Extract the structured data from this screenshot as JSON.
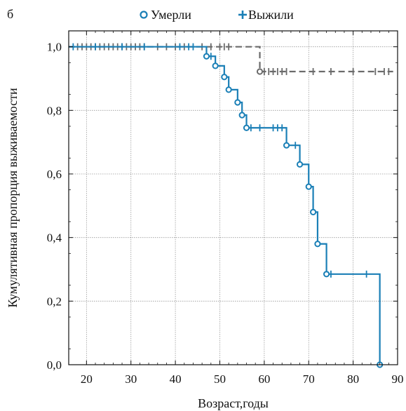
{
  "panel_label": "б",
  "colors": {
    "died_series": "#1a7fb6",
    "survived_series": "#6b6b6b",
    "grid": "#9a9a9a",
    "frame": "#111111"
  },
  "chart_data": {
    "type": "line",
    "subtype": "kaplan-meier step survival curves",
    "title": "",
    "xlabel": "Возраст,годы",
    "ylabel": "Кумулятивная пропорция выживаемости",
    "xlim": [
      16,
      90
    ],
    "ylim": [
      0,
      1.05
    ],
    "x_ticks": [
      20,
      30,
      40,
      50,
      60,
      70,
      80,
      90
    ],
    "y_ticks": [
      0,
      0.2,
      0.4,
      0.6,
      0.8,
      1.0
    ],
    "y_tick_labels": [
      "0,0",
      "0,2",
      "0,4",
      "0,6",
      "0,8",
      "1,0"
    ],
    "grid": true,
    "legend": {
      "placement": "top",
      "entries": [
        {
          "marker": "circle",
          "label": "Умерли"
        },
        {
          "marker": "plus",
          "label": "Выжили"
        }
      ]
    },
    "series": [
      {
        "style": "solid",
        "color": "#1a7fb6",
        "steps": [
          [
            16,
            1.0
          ],
          [
            47,
            0.97
          ],
          [
            49,
            0.94
          ],
          [
            51,
            0.905
          ],
          [
            52,
            0.865
          ],
          [
            54,
            0.825
          ],
          [
            55,
            0.785
          ],
          [
            56,
            0.745
          ],
          [
            65,
            0.69
          ],
          [
            68,
            0.63
          ],
          [
            70,
            0.56
          ],
          [
            71,
            0.48
          ],
          [
            72,
            0.38
          ],
          [
            74,
            0.285
          ],
          [
            86,
            0.0
          ]
        ],
        "events_circle": [
          [
            47,
            0.97
          ],
          [
            49,
            0.94
          ],
          [
            51,
            0.905
          ],
          [
            52,
            0.865
          ],
          [
            54,
            0.825
          ],
          [
            55,
            0.785
          ],
          [
            56,
            0.745
          ],
          [
            65,
            0.69
          ],
          [
            68,
            0.63
          ],
          [
            70,
            0.56
          ],
          [
            71,
            0.48
          ],
          [
            72,
            0.38
          ],
          [
            74,
            0.285
          ],
          [
            86,
            0.0
          ]
        ],
        "censored_plus": [
          [
            17,
            1.0
          ],
          [
            22,
            1.0
          ],
          [
            28,
            1.0
          ],
          [
            33,
            1.0
          ],
          [
            41,
            1.0
          ],
          [
            43,
            1.0
          ],
          [
            44,
            1.0
          ],
          [
            48,
            0.97
          ],
          [
            57,
            0.745
          ],
          [
            59,
            0.745
          ],
          [
            62,
            0.745
          ],
          [
            63,
            0.745
          ],
          [
            64,
            0.745
          ],
          [
            67,
            0.69
          ],
          [
            75,
            0.285
          ],
          [
            83,
            0.285
          ]
        ]
      },
      {
        "style": "dashed",
        "color": "#6b6b6b",
        "steps": [
          [
            16,
            1.0
          ],
          [
            59,
            0.922
          ],
          [
            89,
            0.922
          ]
        ],
        "events_circle": [
          [
            59,
            0.922
          ]
        ],
        "censored_plus": [
          [
            18,
            1.0
          ],
          [
            19,
            1.0
          ],
          [
            20,
            1.0
          ],
          [
            21,
            1.0
          ],
          [
            22,
            1.0
          ],
          [
            23,
            1.0
          ],
          [
            24,
            1.0
          ],
          [
            25,
            1.0
          ],
          [
            26,
            1.0
          ],
          [
            27,
            1.0
          ],
          [
            28,
            1.0
          ],
          [
            29,
            1.0
          ],
          [
            30,
            1.0
          ],
          [
            31,
            1.0
          ],
          [
            32,
            1.0
          ],
          [
            33,
            1.0
          ],
          [
            36,
            1.0
          ],
          [
            38,
            1.0
          ],
          [
            40,
            1.0
          ],
          [
            42,
            1.0
          ],
          [
            46,
            1.0
          ],
          [
            48,
            1.0
          ],
          [
            50,
            1.0
          ],
          [
            51,
            1.0
          ],
          [
            52,
            1.0
          ],
          [
            60,
            0.922
          ],
          [
            61,
            0.922
          ],
          [
            62,
            0.922
          ],
          [
            63,
            0.922
          ],
          [
            64,
            0.922
          ],
          [
            65,
            0.922
          ],
          [
            71,
            0.922
          ],
          [
            75,
            0.922
          ],
          [
            80,
            0.922
          ],
          [
            85,
            0.922
          ],
          [
            87,
            0.922
          ],
          [
            88,
            0.922
          ]
        ]
      }
    ]
  }
}
